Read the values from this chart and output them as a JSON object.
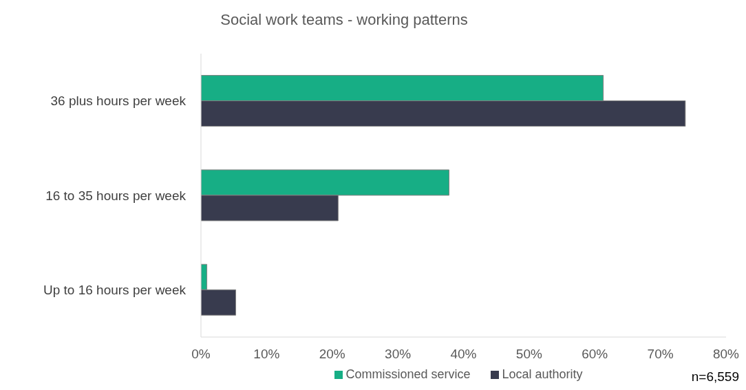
{
  "chart_data": {
    "type": "bar",
    "orientation": "horizontal",
    "title": "Social work teams - working patterns",
    "categories": [
      "36 plus hours per week",
      "16 to 35 hours per week",
      "Up to 16 hours per week"
    ],
    "series": [
      {
        "name": "Commissioned service",
        "color": "#17ae85",
        "values": [
          61.3,
          37.8,
          0.9
        ]
      },
      {
        "name": "Local authority",
        "color": "#383b4e",
        "values": [
          73.8,
          20.9,
          5.3
        ]
      }
    ],
    "xlim": [
      0,
      80
    ],
    "xticks": [
      {
        "value": 0,
        "label": "0%"
      },
      {
        "value": 10,
        "label": "10%"
      },
      {
        "value": 20,
        "label": "20%"
      },
      {
        "value": 30,
        "label": "30%"
      },
      {
        "value": 40,
        "label": "40%"
      },
      {
        "value": 50,
        "label": "50%"
      },
      {
        "value": 60,
        "label": "60%"
      },
      {
        "value": 70,
        "label": "70%"
      },
      {
        "value": 80,
        "label": "80%"
      }
    ],
    "grid": false,
    "legend": "bottom",
    "annotations": [
      "n=6,559"
    ]
  }
}
